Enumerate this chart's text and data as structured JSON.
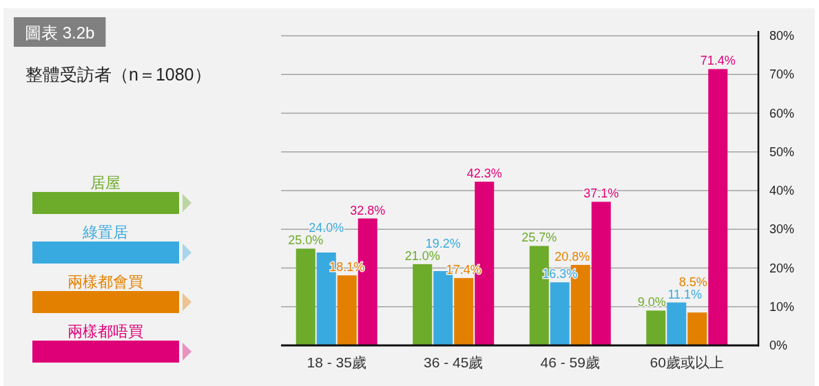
{
  "chart_data": {
    "type": "bar",
    "title": "圖表 3.2b",
    "subtitle": "整體受訪者（n＝1080）",
    "categories": [
      "18 - 35歲",
      "36 - 45歲",
      "46 - 59歲",
      "60歲或以上"
    ],
    "series": [
      {
        "name": "居屋",
        "color": "#6dab2b",
        "values": [
          25.0,
          21.0,
          25.7,
          9.0
        ],
        "value_labels": [
          "25.0%",
          "21.0%",
          "25.7%",
          "9.0%"
        ]
      },
      {
        "name": "綠置居",
        "color": "#39aae0",
        "values": [
          24.0,
          19.2,
          16.3,
          11.1
        ],
        "value_labels": [
          "24.0%",
          "19.2%",
          "16.3%",
          "11.1%"
        ]
      },
      {
        "name": "兩樣都會買",
        "color": "#e48000",
        "values": [
          18.1,
          17.4,
          20.8,
          8.5
        ],
        "value_labels": [
          "18.1%",
          "17.4%",
          "20.8%",
          "8.5%"
        ]
      },
      {
        "name": "兩樣都唔買",
        "color": "#de0077",
        "values": [
          32.8,
          42.3,
          37.1,
          71.4
        ],
        "value_labels": [
          "32.8%",
          "42.3%",
          "37.1%",
          "71.4%"
        ]
      }
    ],
    "ylim": [
      0,
      80
    ],
    "yticks": [
      {
        "value": 0,
        "label": "0%"
      },
      {
        "value": 10,
        "label": "10%"
      },
      {
        "value": 20,
        "label": "20%"
      },
      {
        "value": 30,
        "label": "30%"
      },
      {
        "value": 40,
        "label": "40%"
      },
      {
        "value": 50,
        "label": "50%"
      },
      {
        "value": 60,
        "label": "60%"
      },
      {
        "value": 70,
        "label": "70%"
      },
      {
        "value": 80,
        "label": "80%"
      }
    ],
    "grid": "y",
    "legend": "left"
  }
}
